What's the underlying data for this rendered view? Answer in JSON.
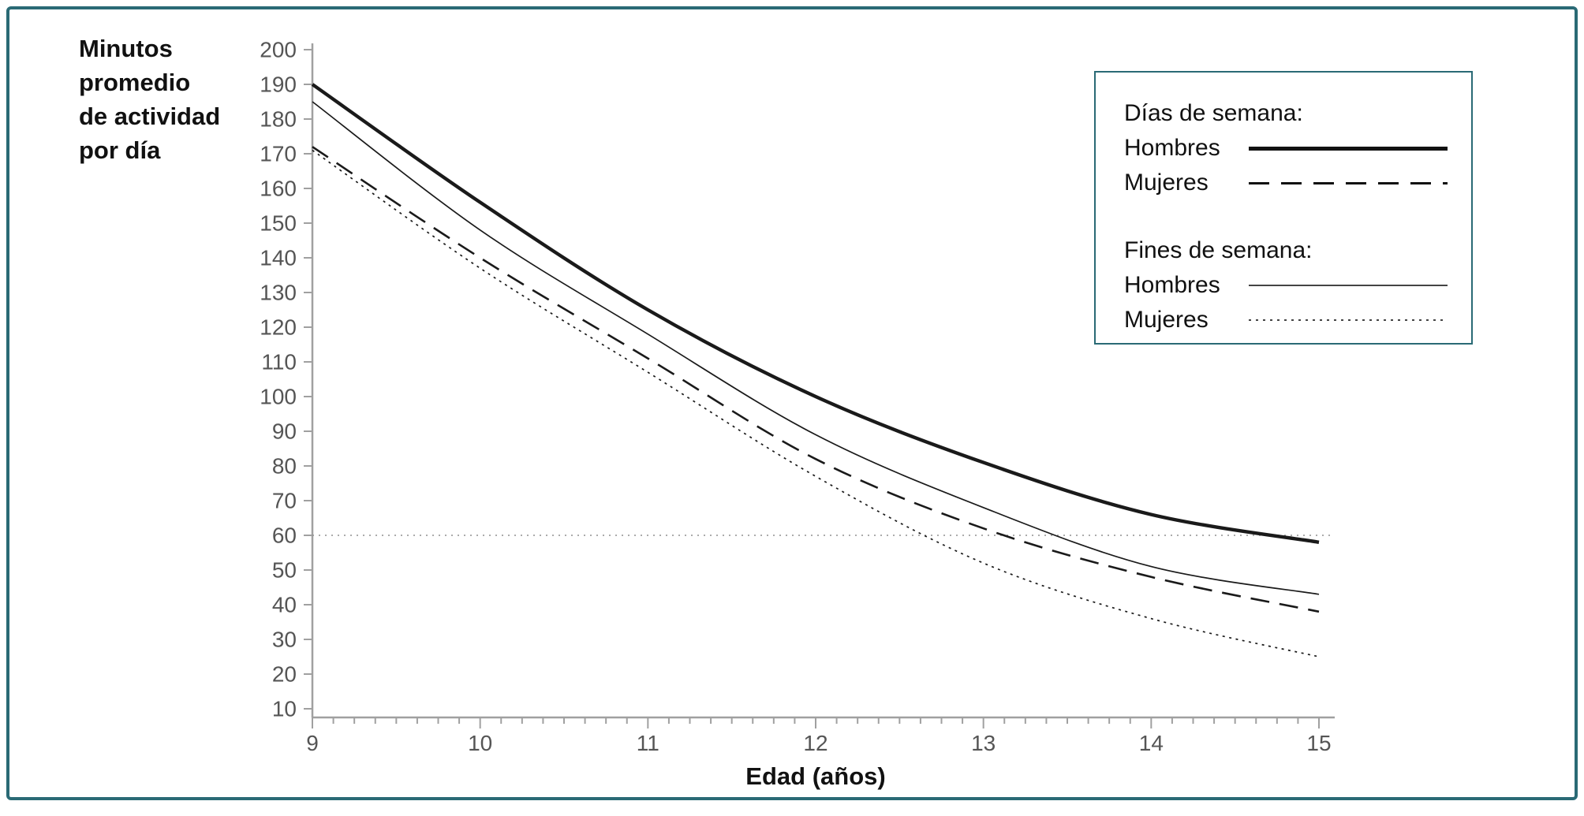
{
  "figure": {
    "y_axis_title_lines": [
      "Minutos",
      "promedio",
      "de actividad",
      "por día"
    ],
    "x_axis_label": "Edad (años)"
  },
  "legend": {
    "group1_title": "Días de semana:",
    "group2_title": "Fines de semana:",
    "entries": [
      {
        "label": "Hombres",
        "style": "thick-solid"
      },
      {
        "label": "Mujeres",
        "style": "long-dash"
      },
      {
        "label": "Hombres",
        "style": "thin-solid"
      },
      {
        "label": "Mujeres",
        "style": "dotted"
      }
    ]
  },
  "chart_data": {
    "type": "line",
    "title": "",
    "xlabel": "Edad (años)",
    "ylabel": "Minutos promedio de actividad por día",
    "x": [
      9,
      10,
      11,
      12,
      13,
      14,
      15
    ],
    "x_ticks": [
      9,
      10,
      11,
      12,
      13,
      14,
      15
    ],
    "y_ticks": [
      10,
      20,
      30,
      40,
      50,
      60,
      70,
      80,
      90,
      100,
      110,
      120,
      130,
      140,
      150,
      160,
      170,
      180,
      190,
      200
    ],
    "xlim": [
      9,
      15
    ],
    "ylim": [
      10,
      200
    ],
    "grid": false,
    "legend_position": "top-right",
    "reference_line": {
      "y": 60,
      "style": "dotted"
    },
    "series": [
      {
        "name": "Días de semana — Hombres",
        "style": "thick-solid",
        "values": [
          190,
          156,
          125,
          100,
          81,
          66,
          58
        ]
      },
      {
        "name": "Días de semana — Mujeres",
        "style": "long-dash",
        "values": [
          172,
          140,
          111,
          82,
          62,
          48,
          38
        ]
      },
      {
        "name": "Fines de semana — Hombres",
        "style": "thin-solid",
        "values": [
          185,
          148,
          118,
          89,
          68,
          51,
          43
        ]
      },
      {
        "name": "Fines de semana — Mujeres",
        "style": "dotted",
        "values": [
          171,
          137,
          107,
          77,
          52,
          36,
          25
        ]
      }
    ],
    "colors": {
      "line": "#1a1a1a",
      "axis": "#a0a0a0",
      "tick_label": "#555555",
      "frame_border": "#2a6a75",
      "reference": "#8f8f8f"
    }
  }
}
